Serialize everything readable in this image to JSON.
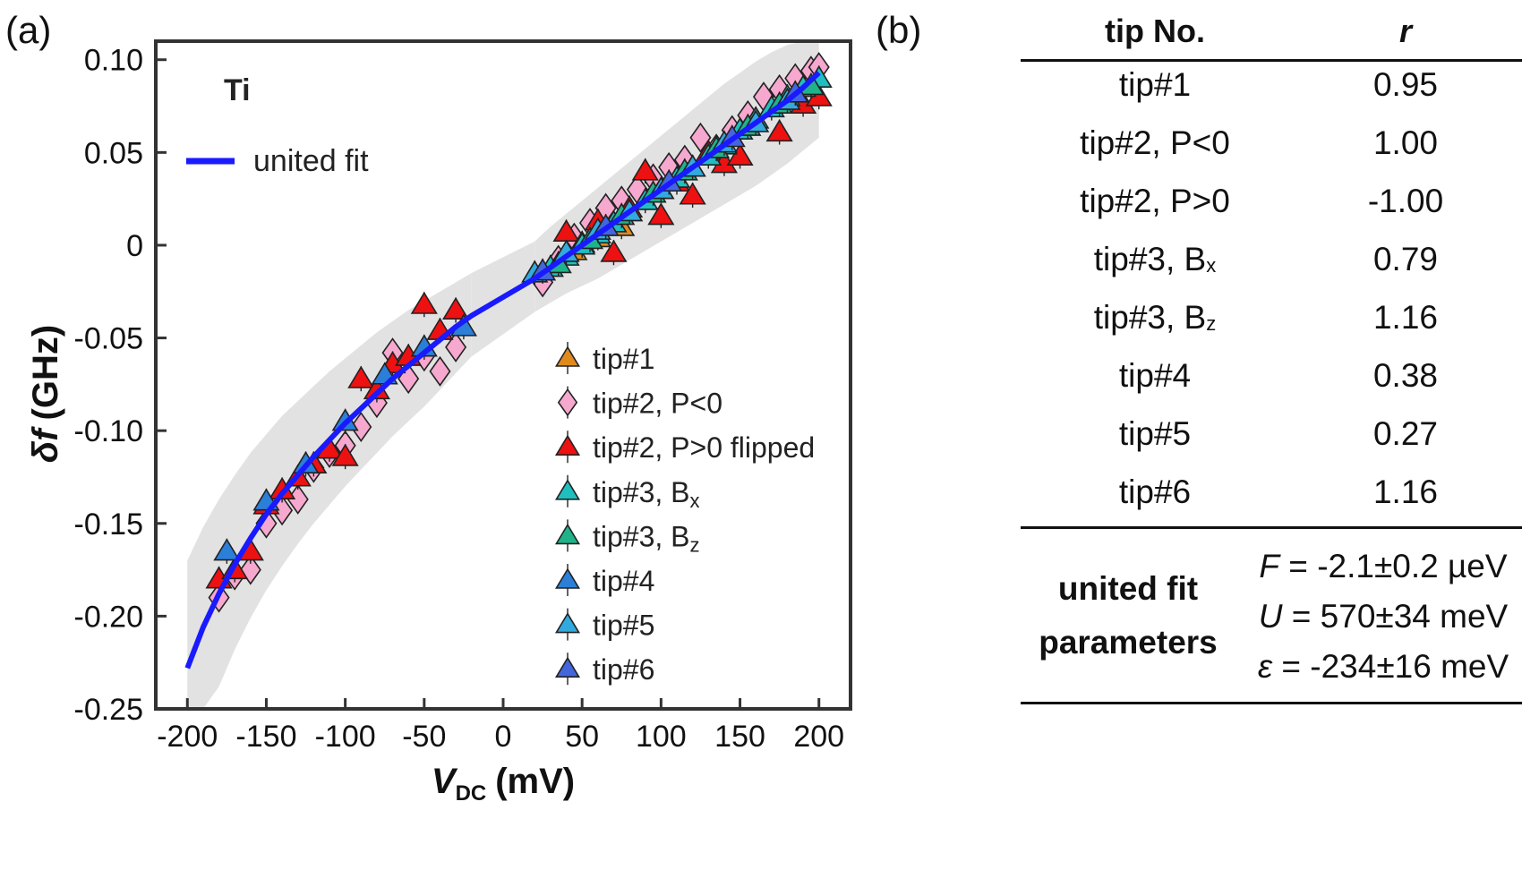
{
  "panel_a_label": "(a)",
  "panel_b_label": "(b)",
  "chart_data": {
    "type": "scatter",
    "annotation": "Ti",
    "xlabel_main": "V",
    "xlabel_sub": "DC",
    "xlabel_unit": "(mV)",
    "ylabel_main": "δf",
    "ylabel_unit": "(GHz)",
    "xlim": [
      -220,
      220
    ],
    "ylim": [
      -0.25,
      0.11
    ],
    "xticks": [
      -200,
      -150,
      -100,
      -50,
      0,
      50,
      100,
      150,
      200
    ],
    "xtick_labels": [
      "-200",
      "-150",
      "-100",
      "-50",
      "0",
      "50",
      "100",
      "150",
      "200"
    ],
    "yticks": [
      -0.25,
      -0.2,
      -0.15,
      -0.1,
      -0.05,
      0,
      0.05,
      0.1
    ],
    "ytick_labels": [
      "-0.25",
      "-0.20",
      "-0.15",
      "-0.10",
      "-0.05",
      "0",
      "0.05",
      "0.10"
    ],
    "fit": {
      "name": "united fit",
      "color": "#1a1aff",
      "x": [
        -200,
        -190,
        -180,
        -170,
        -160,
        -150,
        -140,
        -130,
        -120,
        -110,
        -100,
        -90,
        -80,
        -70,
        -60,
        -50,
        -40,
        -30,
        -20,
        20,
        30,
        40,
        50,
        60,
        70,
        80,
        90,
        100,
        110,
        120,
        130,
        140,
        150,
        160,
        170,
        180,
        190,
        200
      ],
      "y": [
        -0.228,
        -0.206,
        -0.188,
        -0.172,
        -0.158,
        -0.145,
        -0.134,
        -0.124,
        -0.114,
        -0.105,
        -0.096,
        -0.088,
        -0.08,
        -0.072,
        -0.065,
        -0.058,
        -0.051,
        -0.044,
        -0.038,
        -0.018,
        -0.012,
        -0.006,
        0.0,
        0.006,
        0.012,
        0.018,
        0.024,
        0.03,
        0.036,
        0.042,
        0.048,
        0.054,
        0.06,
        0.066,
        0.072,
        0.078,
        0.085,
        0.093
      ],
      "band_upper": [
        -0.17,
        -0.152,
        -0.137,
        -0.124,
        -0.112,
        -0.102,
        -0.092,
        -0.084,
        -0.076,
        -0.068,
        -0.061,
        -0.054,
        -0.047,
        -0.041,
        -0.035,
        -0.03,
        -0.025,
        -0.02,
        -0.015,
        0.002,
        0.01,
        0.017,
        0.024,
        0.031,
        0.038,
        0.045,
        0.052,
        0.059,
        0.066,
        0.073,
        0.08,
        0.087,
        0.093,
        0.099,
        0.104,
        0.108,
        0.11,
        0.111
      ],
      "band_lower": [
        -0.29,
        -0.262,
        -0.238,
        -0.218,
        -0.201,
        -0.186,
        -0.173,
        -0.161,
        -0.15,
        -0.14,
        -0.13,
        -0.121,
        -0.112,
        -0.103,
        -0.095,
        -0.087,
        -0.078,
        -0.069,
        -0.06,
        -0.036,
        -0.031,
        -0.026,
        -0.022,
        -0.018,
        -0.013,
        -0.008,
        -0.003,
        0.002,
        0.007,
        0.012,
        0.017,
        0.022,
        0.027,
        0.032,
        0.038,
        0.044,
        0.051,
        0.058
      ]
    },
    "series": [
      {
        "name": "tip#1",
        "marker": "triangle",
        "color": "#e08a1e",
        "x": [
          45,
          60,
          75
        ],
        "y": [
          -0.003,
          0.004,
          0.01
        ]
      },
      {
        "name": "tip#2, P<0",
        "marker": "diamond",
        "color": "#f7a8cf",
        "x": [
          -180,
          -170,
          -160,
          -150,
          -140,
          -130,
          -120,
          -110,
          -100,
          -90,
          -80,
          -70,
          -60,
          -50,
          -40,
          -30,
          25,
          35,
          45,
          55,
          65,
          75,
          85,
          95,
          105,
          115,
          125,
          135,
          145,
          155,
          165,
          175,
          185,
          195,
          200
        ],
        "y": [
          -0.19,
          -0.178,
          -0.175,
          -0.15,
          -0.143,
          -0.137,
          -0.12,
          -0.112,
          -0.108,
          -0.098,
          -0.085,
          -0.058,
          -0.072,
          -0.06,
          -0.068,
          -0.055,
          -0.02,
          -0.008,
          0.004,
          0.012,
          0.02,
          0.024,
          0.03,
          0.036,
          0.042,
          0.046,
          0.058,
          0.052,
          0.062,
          0.07,
          0.08,
          0.084,
          0.09,
          0.094,
          0.096
        ]
      },
      {
        "name": "tip#2, P>0 flipped",
        "marker": "triangle",
        "color": "#ee1111",
        "x": [
          -180,
          -170,
          -160,
          -150,
          -140,
          -130,
          -120,
          -110,
          -100,
          -90,
          -80,
          -70,
          -60,
          -50,
          -40,
          -30,
          40,
          50,
          60,
          70,
          80,
          90,
          100,
          110,
          120,
          130,
          140,
          150,
          160,
          175,
          190,
          200
        ],
        "y": [
          -0.18,
          -0.175,
          -0.165,
          -0.14,
          -0.132,
          -0.125,
          -0.118,
          -0.11,
          -0.114,
          -0.072,
          -0.078,
          -0.064,
          -0.06,
          -0.032,
          -0.046,
          -0.035,
          0.007,
          0.001,
          0.013,
          -0.004,
          0.02,
          0.04,
          0.016,
          0.034,
          0.027,
          0.05,
          0.044,
          0.048,
          0.068,
          0.061,
          0.076,
          0.08
        ]
      },
      {
        "name": "tip#3, Bx",
        "marker": "triangle",
        "color": "#1fbfbf",
        "x": [
          30,
          40,
          50,
          60,
          70,
          80,
          90,
          100,
          110,
          120,
          130,
          140,
          150,
          160,
          170,
          180,
          190,
          200
        ],
        "y": [
          -0.012,
          -0.006,
          0.0,
          0.006,
          0.012,
          0.018,
          0.024,
          0.03,
          0.036,
          0.042,
          0.048,
          0.054,
          0.062,
          0.068,
          0.074,
          0.08,
          0.085,
          0.09
        ]
      },
      {
        "name": "tip#3, Bz",
        "marker": "triangle",
        "color": "#20b38a",
        "x": [
          35,
          55,
          75,
          95,
          115,
          135,
          155,
          175,
          195
        ],
        "y": [
          -0.01,
          0.003,
          0.016,
          0.028,
          0.04,
          0.052,
          0.064,
          0.076,
          0.086
        ]
      },
      {
        "name": "tip#4",
        "marker": "triangle",
        "color": "#2b7fd8",
        "x": [
          -175,
          -150,
          -125,
          -100,
          -75,
          -50,
          -25
        ],
        "y": [
          -0.165,
          -0.138,
          -0.118,
          -0.095,
          -0.07,
          -0.055,
          -0.044
        ]
      },
      {
        "name": "tip#5",
        "marker": "triangle",
        "color": "#33aadd",
        "x": [
          20,
          40,
          60,
          80,
          100,
          120,
          140,
          160,
          180
        ],
        "y": [
          -0.015,
          -0.004,
          0.008,
          0.018,
          0.03,
          0.042,
          0.055,
          0.066,
          0.078
        ]
      },
      {
        "name": "tip#6",
        "marker": "triangle",
        "color": "#4466dd",
        "x": [
          25,
          65,
          105,
          145,
          185
        ],
        "y": [
          -0.014,
          0.01,
          0.034,
          0.058,
          0.082
        ]
      }
    ],
    "legend_position": "bottom-right"
  },
  "table": {
    "header_tip": "tip No.",
    "header_r": "r",
    "rows": [
      {
        "tip": "tip#1",
        "tip_sub": "",
        "r": "0.95"
      },
      {
        "tip": "tip#2, P<0",
        "tip_sub": "",
        "r": "1.00"
      },
      {
        "tip": "tip#2, P>0",
        "tip_sub": "",
        "r": "-1.00"
      },
      {
        "tip": "tip#3, B",
        "tip_sub": "x",
        "r": "0.79"
      },
      {
        "tip": "tip#3, B",
        "tip_sub": "z",
        "r": "1.16"
      },
      {
        "tip": "tip#4",
        "tip_sub": "",
        "r": "0.38"
      },
      {
        "tip": "tip#5",
        "tip_sub": "",
        "r": "0.27"
      },
      {
        "tip": "tip#6",
        "tip_sub": "",
        "r": "1.16"
      }
    ],
    "fit_label_line1": "united fit",
    "fit_label_line2": "parameters",
    "params": [
      {
        "symbol": "F",
        "value": " = -2.1±0.2 µeV"
      },
      {
        "symbol": "U",
        "value": " = 570±34 meV"
      },
      {
        "symbol": "ε",
        "value": " = -234±16 meV"
      }
    ]
  }
}
